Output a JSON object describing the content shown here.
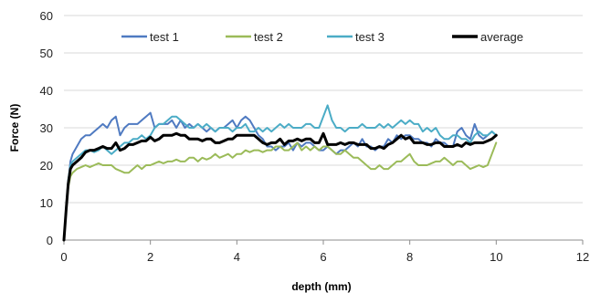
{
  "chart_data": {
    "type": "line",
    "xlabel": "depth (mm)",
    "ylabel": "Force (N)",
    "xlim": [
      0,
      12
    ],
    "ylim": [
      0,
      60
    ],
    "x_ticks": [
      "0",
      "2",
      "4",
      "6",
      "8",
      "10",
      "12"
    ],
    "y_ticks": [
      "0",
      "10",
      "20",
      "30",
      "40",
      "50",
      "60"
    ],
    "grid": "horizontal",
    "legend_position": "top",
    "series": [
      {
        "name": "test 1",
        "color": "#4f7ac1",
        "width": 2,
        "x": [
          0,
          0.05,
          0.1,
          0.15,
          0.2,
          0.3,
          0.4,
          0.5,
          0.6,
          0.7,
          0.8,
          0.9,
          1.0,
          1.1,
          1.2,
          1.3,
          1.4,
          1.5,
          1.6,
          1.7,
          1.8,
          1.9,
          2.0,
          2.1,
          2.2,
          2.3,
          2.4,
          2.5,
          2.6,
          2.7,
          2.8,
          2.9,
          3.0,
          3.1,
          3.2,
          3.3,
          3.4,
          3.5,
          3.6,
          3.7,
          3.8,
          3.9,
          4.0,
          4.1,
          4.2,
          4.3,
          4.4,
          4.5,
          4.6,
          4.7,
          4.8,
          4.9,
          5.0,
          5.1,
          5.2,
          5.3,
          5.4,
          5.5,
          5.6,
          5.7,
          5.8,
          5.9,
          6.0,
          6.1,
          6.2,
          6.3,
          6.4,
          6.5,
          6.6,
          6.7,
          6.8,
          6.9,
          7.0,
          7.1,
          7.2,
          7.3,
          7.4,
          7.5,
          7.6,
          7.7,
          7.8,
          7.9,
          8.0,
          8.1,
          8.2,
          8.3,
          8.4,
          8.5,
          8.6,
          8.7,
          8.8,
          8.9,
          9.0,
          9.1,
          9.2,
          9.3,
          9.4,
          9.5,
          9.6,
          9.7,
          9.8,
          9.9,
          10.0
        ],
        "y": [
          0,
          8,
          15,
          21,
          23,
          25,
          27,
          28,
          28,
          29,
          30,
          31,
          30,
          32,
          33,
          28,
          30,
          31,
          31,
          31,
          32,
          33,
          34,
          30,
          31,
          31,
          31,
          32,
          30,
          32,
          30,
          31,
          30,
          31,
          30,
          29,
          30,
          29,
          30,
          30,
          31,
          32,
          30,
          32,
          33,
          32,
          30,
          28,
          27,
          25,
          25,
          24,
          25,
          25,
          26,
          24,
          26,
          25,
          26,
          26,
          25,
          24,
          24,
          25,
          24,
          23,
          24,
          24,
          25,
          26,
          25,
          27,
          25,
          25,
          24,
          25,
          25,
          27,
          26,
          28,
          27,
          28,
          28,
          27,
          27,
          26,
          26,
          25,
          27,
          26,
          26,
          25,
          25,
          29,
          30,
          28,
          27,
          31,
          28,
          27,
          28,
          29,
          28
        ]
      },
      {
        "name": "test 2",
        "color": "#9bbb59",
        "width": 2,
        "x": [
          0,
          0.05,
          0.1,
          0.15,
          0.2,
          0.3,
          0.4,
          0.5,
          0.6,
          0.7,
          0.8,
          0.9,
          1.0,
          1.1,
          1.2,
          1.3,
          1.4,
          1.5,
          1.6,
          1.7,
          1.8,
          1.9,
          2.0,
          2.1,
          2.2,
          2.3,
          2.4,
          2.5,
          2.6,
          2.7,
          2.8,
          2.9,
          3.0,
          3.1,
          3.2,
          3.3,
          3.4,
          3.5,
          3.6,
          3.7,
          3.8,
          3.9,
          4.0,
          4.1,
          4.2,
          4.3,
          4.4,
          4.5,
          4.6,
          4.7,
          4.8,
          4.9,
          5.0,
          5.1,
          5.2,
          5.3,
          5.4,
          5.5,
          5.6,
          5.7,
          5.8,
          5.9,
          6.0,
          6.1,
          6.2,
          6.3,
          6.4,
          6.5,
          6.6,
          6.7,
          6.8,
          6.9,
          7.0,
          7.1,
          7.2,
          7.3,
          7.4,
          7.5,
          7.6,
          7.7,
          7.8,
          7.9,
          8.0,
          8.1,
          8.2,
          8.3,
          8.4,
          8.5,
          8.6,
          8.7,
          8.8,
          8.9,
          9.0,
          9.1,
          9.2,
          9.3,
          9.4,
          9.5,
          9.6,
          9.7,
          9.8,
          9.9,
          10.0
        ],
        "y": [
          0,
          8,
          14,
          17,
          18,
          19,
          19.5,
          20,
          19.5,
          20,
          20.5,
          20,
          20,
          20,
          19,
          18.5,
          18,
          18,
          19,
          20,
          19,
          20,
          20,
          20.5,
          21,
          20.5,
          21,
          21,
          21.5,
          21,
          21,
          22,
          22,
          21,
          22,
          21.5,
          22,
          23,
          22,
          22.5,
          23,
          22,
          23,
          23,
          24,
          23.5,
          24,
          24,
          23.5,
          24,
          24,
          25,
          25,
          24,
          24,
          25,
          26,
          24,
          25,
          24,
          25,
          24,
          25,
          25,
          24,
          23,
          23,
          24,
          23,
          22,
          22,
          21,
          20,
          19,
          19,
          20,
          19,
          19,
          20,
          21,
          21,
          22,
          23,
          21,
          20,
          20,
          20,
          20.5,
          21,
          21,
          22,
          21,
          20,
          21,
          21,
          20,
          19,
          19.5,
          20,
          19.5,
          20,
          23,
          26
        ]
      },
      {
        "name": "test 3",
        "color": "#4bacc6",
        "width": 2,
        "x": [
          0,
          0.05,
          0.1,
          0.15,
          0.2,
          0.3,
          0.4,
          0.5,
          0.6,
          0.7,
          0.8,
          0.9,
          1.0,
          1.1,
          1.2,
          1.3,
          1.4,
          1.5,
          1.6,
          1.7,
          1.8,
          1.9,
          2.0,
          2.1,
          2.2,
          2.3,
          2.4,
          2.5,
          2.6,
          2.7,
          2.8,
          2.9,
          3.0,
          3.1,
          3.2,
          3.3,
          3.4,
          3.5,
          3.6,
          3.7,
          3.8,
          3.9,
          4.0,
          4.1,
          4.2,
          4.3,
          4.4,
          4.5,
          4.6,
          4.7,
          4.8,
          4.9,
          5.0,
          5.1,
          5.2,
          5.3,
          5.4,
          5.5,
          5.6,
          5.7,
          5.8,
          5.9,
          6.0,
          6.1,
          6.2,
          6.3,
          6.4,
          6.5,
          6.6,
          6.7,
          6.8,
          6.9,
          7.0,
          7.1,
          7.2,
          7.3,
          7.4,
          7.5,
          7.6,
          7.7,
          7.8,
          7.9,
          8.0,
          8.1,
          8.2,
          8.3,
          8.4,
          8.5,
          8.6,
          8.7,
          8.8,
          8.9,
          9.0,
          9.1,
          9.2,
          9.3,
          9.4,
          9.5,
          9.6,
          9.7,
          9.8,
          9.9,
          10.0
        ],
        "y": [
          0,
          9,
          16,
          20,
          21,
          22,
          23,
          24,
          24,
          23.5,
          24,
          25,
          24,
          23,
          24,
          25,
          26,
          26,
          27,
          27,
          28,
          27,
          28,
          30,
          31,
          31,
          32,
          33,
          33,
          32,
          31,
          30,
          30,
          31,
          30,
          31,
          30,
          29,
          30,
          30,
          30,
          29,
          30,
          30,
          31,
          29,
          29,
          30,
          29,
          30,
          29,
          30,
          31,
          30,
          31,
          30,
          30,
          30,
          31,
          31,
          30,
          30,
          33,
          36,
          32,
          30,
          30,
          29,
          30,
          30,
          30,
          31,
          30,
          30,
          30,
          31,
          30,
          31,
          30,
          31,
          32,
          31,
          32,
          31,
          31,
          29,
          30,
          29,
          30,
          28,
          27,
          27,
          28,
          28,
          27,
          27,
          26,
          28,
          29,
          28,
          28,
          29,
          28
        ]
      },
      {
        "name": "average",
        "color": "#000000",
        "width": 3,
        "x": [
          0,
          0.05,
          0.1,
          0.15,
          0.2,
          0.3,
          0.4,
          0.5,
          0.6,
          0.7,
          0.8,
          0.9,
          1.0,
          1.1,
          1.2,
          1.3,
          1.4,
          1.5,
          1.6,
          1.7,
          1.8,
          1.9,
          2.0,
          2.1,
          2.2,
          2.3,
          2.4,
          2.5,
          2.6,
          2.7,
          2.8,
          2.9,
          3.0,
          3.1,
          3.2,
          3.3,
          3.4,
          3.5,
          3.6,
          3.7,
          3.8,
          3.9,
          4.0,
          4.1,
          4.2,
          4.3,
          4.4,
          4.5,
          4.6,
          4.7,
          4.8,
          4.9,
          5.0,
          5.1,
          5.2,
          5.3,
          5.4,
          5.5,
          5.6,
          5.7,
          5.8,
          5.9,
          6.0,
          6.1,
          6.2,
          6.3,
          6.4,
          6.5,
          6.6,
          6.7,
          6.8,
          6.9,
          7.0,
          7.1,
          7.2,
          7.3,
          7.4,
          7.5,
          7.6,
          7.7,
          7.8,
          7.9,
          8.0,
          8.1,
          8.2,
          8.3,
          8.4,
          8.5,
          8.6,
          8.7,
          8.8,
          8.9,
          9.0,
          9.1,
          9.2,
          9.3,
          9.4,
          9.5,
          9.6,
          9.7,
          9.8,
          9.9,
          10.0
        ],
        "y": [
          0,
          8,
          15,
          19,
          20,
          21,
          22,
          23.5,
          24,
          24,
          24.5,
          25,
          24.5,
          24.5,
          26,
          24,
          24.5,
          25.5,
          25.5,
          26,
          26.5,
          26.5,
          27.5,
          26.5,
          27,
          28,
          28,
          28,
          28.5,
          28,
          28,
          27,
          27,
          27,
          26.5,
          27,
          27,
          26,
          26,
          26.5,
          27,
          27,
          28,
          28,
          28,
          28,
          28,
          27,
          26,
          25.5,
          26,
          26,
          27,
          25.5,
          26.5,
          26.5,
          27,
          26.5,
          27,
          27,
          26,
          26,
          28.5,
          25.5,
          25.5,
          25.5,
          26,
          25.5,
          26,
          26,
          25.5,
          25.5,
          25.5,
          24.5,
          24.5,
          25,
          24.5,
          25.5,
          26,
          27,
          28,
          27,
          27.5,
          26,
          26,
          26,
          25.5,
          25.5,
          26,
          26,
          25,
          25,
          25,
          25.5,
          25,
          26,
          25.5,
          26,
          26,
          26,
          26.5,
          27,
          28
        ]
      }
    ]
  }
}
